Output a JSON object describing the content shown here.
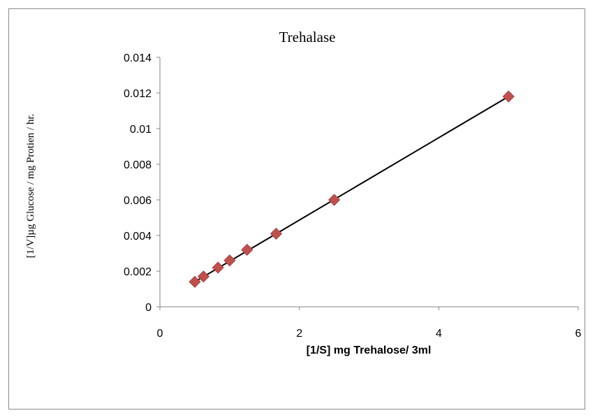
{
  "chart_data": {
    "type": "scatter",
    "title": "Trehalase",
    "xlabel": "[1/S] mg Trehalose/ 3ml",
    "ylabel": "[1/V]µg Glucose / mg Protien / hr.",
    "xlim": [
      0,
      6
    ],
    "ylim": [
      0,
      0.014
    ],
    "x_ticks": [
      "0",
      "2",
      "4",
      "6"
    ],
    "y_ticks": [
      "0",
      "0.002",
      "0.004",
      "0.006",
      "0.008",
      "0.01",
      "0.012",
      "0.014"
    ],
    "grid": false,
    "legend": "none",
    "marker": "diamond",
    "marker_color": "#C0504D",
    "line_color": "#000000",
    "series": [
      {
        "x": [
          0.5,
          0.625,
          0.833,
          1.0,
          1.25,
          1.667,
          2.5,
          5.0
        ],
        "y": [
          0.0014,
          0.0017,
          0.0022,
          0.0026,
          0.0032,
          0.0041,
          0.006,
          0.0118
        ]
      }
    ],
    "trendline": {
      "type": "linear",
      "x": [
        0.5,
        5.0
      ],
      "y": [
        0.0014,
        0.0118
      ]
    }
  }
}
